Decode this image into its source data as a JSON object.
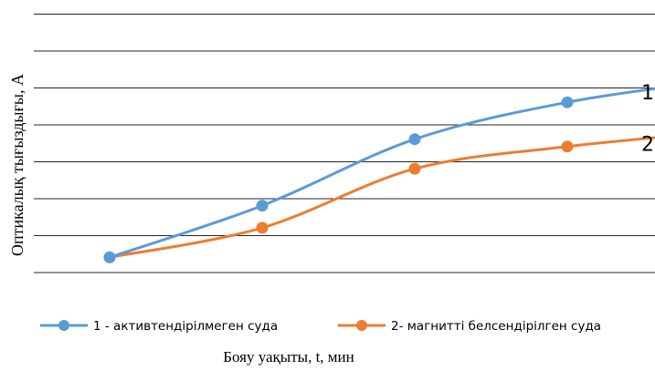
{
  "chart_data": {
    "type": "line",
    "title": "",
    "xlabel": "Бояу уақыты, t, мин",
    "ylabel": "Оптикалық тығыздығы, А",
    "x": [
      0,
      1,
      2,
      3,
      4
    ],
    "ylim": [
      0,
      8
    ],
    "grid": true,
    "legend_position": "bottom",
    "series": [
      {
        "name": "1 - активтендірілмеген суда",
        "values": [
          1.4,
          2.8,
          4.6,
          5.6,
          6.2
        ],
        "color": "#5B9BD5",
        "annotation": "1"
      },
      {
        "name": "2- магнитті белсендірілген суда",
        "values": [
          1.4,
          2.2,
          3.8,
          4.4,
          4.8
        ],
        "color": "#ED7D31",
        "annotation": "2"
      }
    ]
  }
}
